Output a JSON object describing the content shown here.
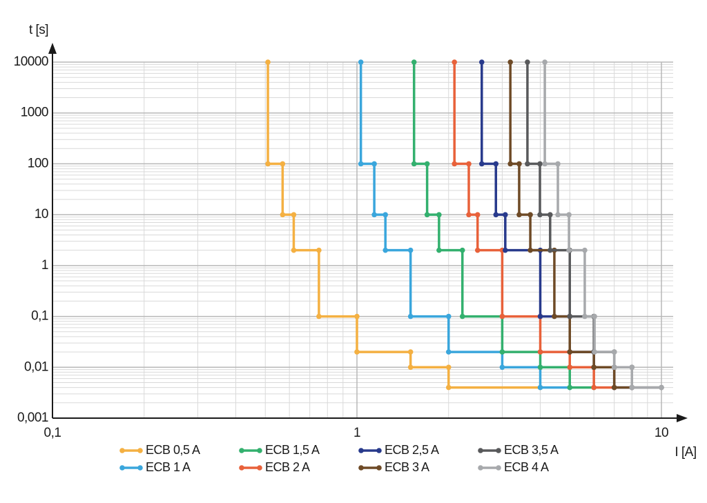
{
  "chart_data": {
    "type": "step-line",
    "xlabel": "I [A]",
    "ylabel": "t [s]",
    "xscale": "log",
    "yscale": "log",
    "grid": true,
    "legend": "bottom",
    "xlim": [
      0.1,
      10
    ],
    "ylim": [
      0.001,
      10000
    ],
    "xticks": [
      {
        "value": 0.1,
        "label": "0,1"
      },
      1,
      10
    ],
    "yticks": [
      {
        "value": 0.001,
        "label": "0,001"
      },
      {
        "value": 0.01,
        "label": "0,01"
      },
      {
        "value": 0.1,
        "label": "0,1"
      },
      1,
      10,
      100,
      1000,
      10000
    ],
    "series": [
      {
        "name": "ECB 0,5 A",
        "color": "#f4b042",
        "x": [
          0.51,
          0.51,
          0.57,
          0.57,
          0.62,
          0.62,
          0.75,
          0.75,
          1,
          1,
          1.5,
          1.5,
          2,
          2,
          4
        ],
        "values": [
          10000,
          100,
          100,
          10,
          10,
          2,
          2,
          0.1,
          0.1,
          0.02,
          0.02,
          0.01,
          0.01,
          0.004,
          0.004
        ]
      },
      {
        "name": "ECB 1 A",
        "color": "#3aa6dc",
        "x": [
          1.03,
          1.03,
          1.14,
          1.14,
          1.24,
          1.24,
          1.5,
          1.5,
          2,
          2,
          3,
          3,
          4,
          4,
          5
        ],
        "values": [
          10000,
          100,
          100,
          10,
          10,
          2,
          2,
          0.1,
          0.1,
          0.02,
          0.02,
          0.01,
          0.01,
          0.004,
          0.004
        ]
      },
      {
        "name": "ECB 1,5 A",
        "color": "#33b06e",
        "x": [
          1.54,
          1.54,
          1.7,
          1.7,
          1.86,
          1.86,
          2.22,
          2.22,
          3,
          3,
          4,
          4,
          5,
          5,
          6
        ],
        "values": [
          10000,
          100,
          100,
          10,
          10,
          2,
          2,
          0.1,
          0.1,
          0.02,
          0.02,
          0.01,
          0.01,
          0.004,
          0.004
        ]
      },
      {
        "name": "ECB 2 A",
        "color": "#e8613a",
        "x": [
          2.09,
          2.09,
          2.33,
          2.33,
          2.49,
          2.49,
          3,
          3,
          4,
          4,
          5,
          5,
          6,
          6,
          7
        ],
        "values": [
          10000,
          100,
          100,
          10,
          10,
          2,
          2,
          0.1,
          0.1,
          0.02,
          0.02,
          0.01,
          0.01,
          0.004,
          0.004
        ]
      },
      {
        "name": "ECB 2,5 A",
        "color": "#283a8c",
        "x": [
          2.57,
          2.57,
          2.86,
          2.86,
          3.07,
          3.07,
          4,
          4,
          5,
          5,
          6,
          6,
          7,
          7,
          8
        ],
        "values": [
          10000,
          100,
          100,
          10,
          10,
          2,
          2,
          0.1,
          0.1,
          0.02,
          0.02,
          0.01,
          0.01,
          0.004,
          0.004
        ]
      },
      {
        "name": "ECB 3 A",
        "color": "#6e4a26",
        "x": [
          3.19,
          3.19,
          3.41,
          3.41,
          3.71,
          3.71,
          4.45,
          4.45,
          5,
          5,
          6,
          6,
          7,
          7,
          8
        ],
        "values": [
          10000,
          100,
          100,
          10,
          10,
          2,
          2,
          0.1,
          0.1,
          0.02,
          0.02,
          0.01,
          0.01,
          0.004,
          0.004
        ]
      },
      {
        "name": "ECB 3,5 A",
        "color": "#58595b",
        "x": [
          3.63,
          3.63,
          3.99,
          3.99,
          4.31,
          4.31,
          5,
          5,
          6,
          6,
          7,
          7,
          8,
          8,
          10
        ],
        "values": [
          10000,
          100,
          100,
          10,
          10,
          2,
          2,
          0.1,
          0.1,
          0.02,
          0.02,
          0.01,
          0.01,
          0.004,
          0.004
        ]
      },
      {
        "name": "ECB 4 A",
        "color": "#a7a9ac",
        "x": [
          4.14,
          4.14,
          4.57,
          4.57,
          4.97,
          4.97,
          5.6,
          5.6,
          6.03,
          6.03,
          7,
          7,
          8,
          8,
          10
        ],
        "values": [
          10000,
          100,
          100,
          10,
          10,
          2,
          2,
          0.1,
          0.1,
          0.02,
          0.02,
          0.01,
          0.01,
          0.004,
          0.004
        ]
      }
    ]
  }
}
